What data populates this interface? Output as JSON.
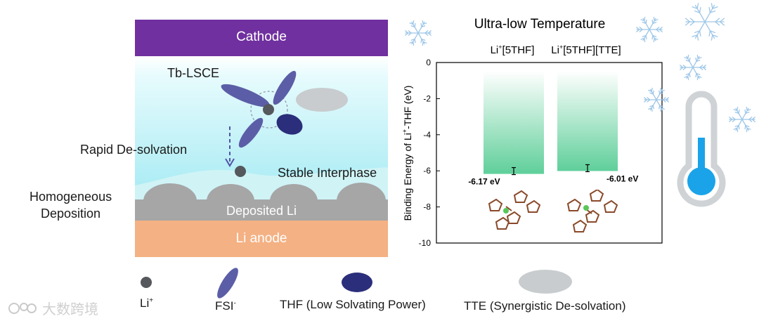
{
  "left_panel": {
    "cathode_label": "Cathode",
    "electrolyte_label": "Tb-LSCE",
    "desolvation_label": "Rapid De-solvation",
    "interphase_label": "Stable Interphase",
    "deposition_label_line1": "Homogeneous",
    "deposition_label_line2": "Deposition",
    "deposited_label": "Deposited Li",
    "anode_label": "Li anode"
  },
  "legend": {
    "li_label": "Li",
    "li_sup": "+",
    "fsi_label": "FSI",
    "fsi_sup": "-",
    "thf_label": "THF (Low Solvating Power)",
    "tte_label": "TTE (Synergistic De-solvation)"
  },
  "colors": {
    "cathode": "#7030a0",
    "anode": "#f4b183",
    "deposit": "#a6a6a6",
    "fsi": "#5b5ea6",
    "thf": "#2b2e7a",
    "tte": "#c8ccce",
    "li_ion": "#55585c",
    "bar": "#5fcf9a"
  },
  "chart_data": {
    "type": "bar",
    "title": "Ultra-low Temperature",
    "categories": [
      "Li+[5THF]",
      "Li+[5THF][TTE]"
    ],
    "category_labels": [
      {
        "base": "Li",
        "sup": "+",
        "rest": "[5THF]"
      },
      {
        "base": "Li",
        "sup": "+",
        "rest": "[5THF][TTE]"
      }
    ],
    "values": [
      -6.17,
      -6.01
    ],
    "value_labels": [
      "-6.17 eV",
      "-6.01 eV"
    ],
    "ylabel_parts": {
      "pre": "Binding Energy of Li",
      "sup": "+",
      "post": "-THF (eV)"
    },
    "ylim": [
      -10,
      0
    ],
    "yticks": [
      0,
      -2,
      -4,
      -6,
      -8,
      -10
    ],
    "grid": false
  },
  "watermark": "大数跨境",
  "icons": {
    "snowflake": "snowflake-icon",
    "thermometer": "thermometer-icon"
  }
}
